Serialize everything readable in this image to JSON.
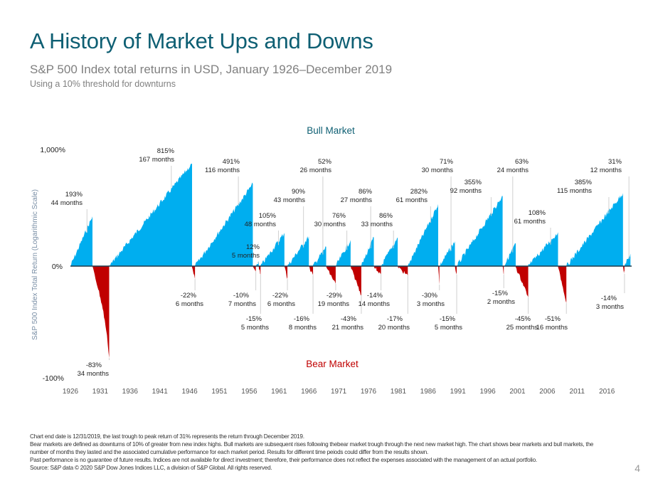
{
  "title": "A History of Market Ups and Downs",
  "subtitle": "S&P 500 Index total returns in USD, January 1926–December 2019",
  "subtitle2": "Using a 10% threshold for downturns",
  "colors": {
    "title": "#0e5f73",
    "bull": "#00aeef",
    "bear": "#c00000",
    "axis": "#1f3b4d"
  },
  "chart_data": {
    "type": "area",
    "title": "A History of Market Ups and Downs",
    "ylabel": "S&P 500 Index Total Return (Logarithmic Scale)",
    "xlabel": "",
    "yscale": "log",
    "yticks": [
      "1,000%",
      "0%",
      "-100%"
    ],
    "xticks": [
      "1926",
      "1931",
      "1936",
      "1941",
      "1946",
      "1951",
      "1956",
      "1961",
      "1966",
      "1971",
      "1976",
      "1981",
      "1986",
      "1991",
      "1996",
      "2001",
      "2006",
      "2011",
      "2016"
    ],
    "xlim": [
      1926,
      2020
    ],
    "legend": {
      "bull_label": "Bull Market",
      "bear_label": "Bear Market"
    },
    "bull_markets": [
      {
        "start": 1926.0,
        "end": 1929.7,
        "return_pct": 193,
        "months": 44
      },
      {
        "start": 1932.5,
        "end": 1946.4,
        "return_pct": 815,
        "months": 167
      },
      {
        "start": 1946.9,
        "end": 1956.6,
        "return_pct": 491,
        "months": 116
      },
      {
        "start": 1957.1,
        "end": 1957.6,
        "return_pct": 12,
        "months": 5
      },
      {
        "start": 1957.9,
        "end": 1961.9,
        "return_pct": 105,
        "months": 48
      },
      {
        "start": 1962.4,
        "end": 1966.0,
        "return_pct": 90,
        "months": 43
      },
      {
        "start": 1966.7,
        "end": 1968.9,
        "return_pct": 52,
        "months": 26
      },
      {
        "start": 1970.5,
        "end": 1973.0,
        "return_pct": 76,
        "months": 30
      },
      {
        "start": 1974.8,
        "end": 1976.9,
        "return_pct": 86,
        "months": 27
      },
      {
        "start": 1978.1,
        "end": 1980.9,
        "return_pct": 86,
        "months": 33
      },
      {
        "start": 1982.6,
        "end": 1987.7,
        "return_pct": 282,
        "months": 61
      },
      {
        "start": 1987.9,
        "end": 1990.5,
        "return_pct": 71,
        "months": 30
      },
      {
        "start": 1990.8,
        "end": 1998.5,
        "return_pct": 355,
        "months": 92
      },
      {
        "start": 1998.7,
        "end": 2000.7,
        "return_pct": 63,
        "months": 24
      },
      {
        "start": 2002.8,
        "end": 2007.8,
        "return_pct": 108,
        "months": 61
      },
      {
        "start": 2009.2,
        "end": 2018.7,
        "return_pct": 385,
        "months": 115
      },
      {
        "start": 2018.95,
        "end": 2019.95,
        "return_pct": 31,
        "months": 12
      }
    ],
    "bear_markets": [
      {
        "start": 1929.7,
        "end": 1932.5,
        "return_pct": -83,
        "months": 34
      },
      {
        "start": 1946.4,
        "end": 1946.9,
        "return_pct": -22,
        "months": 6
      },
      {
        "start": 1956.6,
        "end": 1957.1,
        "return_pct": -10,
        "months": 7
      },
      {
        "start": 1957.6,
        "end": 1957.9,
        "return_pct": -15,
        "months": 5
      },
      {
        "start": 1961.9,
        "end": 1962.4,
        "return_pct": -22,
        "months": 6
      },
      {
        "start": 1966.0,
        "end": 1966.7,
        "return_pct": -16,
        "months": 8
      },
      {
        "start": 1968.9,
        "end": 1970.5,
        "return_pct": -29,
        "months": 19
      },
      {
        "start": 1973.0,
        "end": 1974.8,
        "return_pct": -43,
        "months": 21
      },
      {
        "start": 1976.9,
        "end": 1978.1,
        "return_pct": -14,
        "months": 14
      },
      {
        "start": 1980.9,
        "end": 1982.6,
        "return_pct": -17,
        "months": 20
      },
      {
        "start": 1987.7,
        "end": 1987.9,
        "return_pct": -30,
        "months": 3
      },
      {
        "start": 1990.5,
        "end": 1990.8,
        "return_pct": -15,
        "months": 5
      },
      {
        "start": 1998.5,
        "end": 1998.7,
        "return_pct": -15,
        "months": 2
      },
      {
        "start": 2000.7,
        "end": 2002.8,
        "return_pct": -45,
        "months": 25
      },
      {
        "start": 2007.8,
        "end": 2009.2,
        "return_pct": -51,
        "months": 16
      },
      {
        "start": 2018.7,
        "end": 2018.95,
        "return_pct": -14,
        "months": 3
      }
    ]
  },
  "footnotes": [
    "Chart end date is 12/31/2019, the last trough to peak return of 31% represents the return through December 2019.",
    "Bear markets are defined as downturns of 10% of greater from new index highs. Bull markets are subsequent rises following thebear market trough through the next new market high. The chart shows bear markets and bull markets, the",
    "number of months they lasted and the associated cumulative performance for each market period. Results for different time peiods could differ from the results shown.",
    "Past performance is no guarantee of future results. Indices are not available for direct investment; therefore, their performance does not reflect the expenses associated with the management of an actual portfolio.",
    "Source: S&P data © 2020 S&P Dow Jones Indices LLC, a division of S&P Global. All rights reserved."
  ],
  "page_number": "4"
}
